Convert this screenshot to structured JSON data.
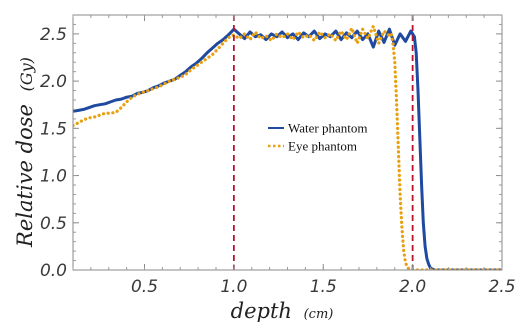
{
  "chart_data": {
    "type": "line",
    "title": "",
    "xlabel": "depth",
    "xlabel_unit": "(cm)",
    "ylabel": "Relative dose",
    "ylabel_unit": "(Gy)",
    "xlim": [
      0.1,
      2.5
    ],
    "ylim": [
      0,
      2.7
    ],
    "x_ticks": [
      "0.5",
      "1.0",
      "1.5",
      "2.0",
      "2.5"
    ],
    "y_ticks": [
      "0.0",
      "0.5",
      "1.0",
      "1.5",
      "2.0",
      "2.5"
    ],
    "grid": false,
    "legend_position": "center",
    "vlines": [
      1.0,
      2.0
    ],
    "vline_color": "#b8122a",
    "series": [
      {
        "name": "Water phantom",
        "color": "#1f4aa0",
        "style": "solid",
        "x": [
          0.1,
          0.13,
          0.16,
          0.19,
          0.22,
          0.25,
          0.28,
          0.31,
          0.34,
          0.37,
          0.4,
          0.43,
          0.46,
          0.49,
          0.52,
          0.55,
          0.58,
          0.61,
          0.64,
          0.67,
          0.7,
          0.73,
          0.76,
          0.79,
          0.82,
          0.85,
          0.88,
          0.91,
          0.94,
          0.97,
          1.0,
          1.03,
          1.06,
          1.09,
          1.12,
          1.15,
          1.18,
          1.21,
          1.24,
          1.27,
          1.3,
          1.33,
          1.36,
          1.39,
          1.42,
          1.45,
          1.48,
          1.51,
          1.54,
          1.57,
          1.6,
          1.63,
          1.66,
          1.69,
          1.72,
          1.75,
          1.78,
          1.81,
          1.84,
          1.87,
          1.9,
          1.93,
          1.96,
          1.99,
          2.01,
          2.02,
          2.03,
          2.04,
          2.05,
          2.06,
          2.07,
          2.08,
          2.09,
          2.1,
          2.12,
          2.15,
          2.2,
          2.3,
          2.4,
          2.5
        ],
        "values": [
          1.68,
          1.69,
          1.7,
          1.72,
          1.74,
          1.75,
          1.76,
          1.78,
          1.8,
          1.81,
          1.83,
          1.84,
          1.87,
          1.88,
          1.9,
          1.93,
          1.95,
          1.98,
          2.0,
          2.02,
          2.06,
          2.1,
          2.15,
          2.19,
          2.24,
          2.3,
          2.35,
          2.4,
          2.44,
          2.49,
          2.55,
          2.5,
          2.45,
          2.52,
          2.47,
          2.49,
          2.44,
          2.5,
          2.47,
          2.52,
          2.46,
          2.5,
          2.44,
          2.51,
          2.47,
          2.53,
          2.45,
          2.5,
          2.47,
          2.53,
          2.44,
          2.51,
          2.46,
          2.53,
          2.44,
          2.5,
          2.36,
          2.53,
          2.41,
          2.55,
          2.38,
          2.5,
          2.42,
          2.53,
          2.47,
          2.3,
          1.9,
          1.4,
          0.9,
          0.5,
          0.25,
          0.12,
          0.06,
          0.02,
          0.0,
          0.0,
          0.0,
          0.0,
          0.0,
          0.0
        ]
      },
      {
        "name": "Eye phantom",
        "color": "#e8a010",
        "style": "dotted",
        "x": [
          0.1,
          0.13,
          0.16,
          0.19,
          0.22,
          0.25,
          0.28,
          0.31,
          0.34,
          0.37,
          0.4,
          0.43,
          0.46,
          0.49,
          0.52,
          0.55,
          0.58,
          0.61,
          0.64,
          0.67,
          0.7,
          0.73,
          0.76,
          0.79,
          0.82,
          0.85,
          0.88,
          0.91,
          0.94,
          0.97,
          1.0,
          1.03,
          1.06,
          1.09,
          1.12,
          1.15,
          1.18,
          1.21,
          1.24,
          1.27,
          1.3,
          1.33,
          1.36,
          1.39,
          1.42,
          1.45,
          1.48,
          1.51,
          1.54,
          1.57,
          1.6,
          1.63,
          1.66,
          1.69,
          1.72,
          1.75,
          1.78,
          1.81,
          1.84,
          1.87,
          1.88,
          1.89,
          1.9,
          1.91,
          1.92,
          1.93,
          1.94,
          1.95,
          1.96,
          1.97,
          1.98,
          2.0,
          2.05,
          2.1,
          2.2,
          2.3,
          2.4,
          2.5
        ],
        "values": [
          1.53,
          1.56,
          1.59,
          1.61,
          1.62,
          1.64,
          1.66,
          1.66,
          1.67,
          1.72,
          1.78,
          1.83,
          1.86,
          1.88,
          1.9,
          1.92,
          1.94,
          1.97,
          2.0,
          2.02,
          2.04,
          2.07,
          2.12,
          2.16,
          2.2,
          2.24,
          2.28,
          2.34,
          2.4,
          2.46,
          2.49,
          2.45,
          2.5,
          2.44,
          2.52,
          2.45,
          2.48,
          2.43,
          2.5,
          2.46,
          2.5,
          2.44,
          2.52,
          2.46,
          2.49,
          2.43,
          2.52,
          2.46,
          2.5,
          2.43,
          2.53,
          2.44,
          2.56,
          2.4,
          2.55,
          2.45,
          2.58,
          2.4,
          2.53,
          2.48,
          2.5,
          2.4,
          2.2,
          1.8,
          1.3,
          0.8,
          0.45,
          0.2,
          0.08,
          0.03,
          0.01,
          0.0,
          0.0,
          0.0,
          0.0,
          0.0,
          0.0,
          0.0
        ]
      }
    ]
  }
}
